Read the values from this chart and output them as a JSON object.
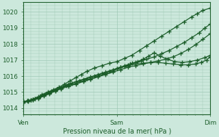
{
  "background_color": "#cce8dc",
  "grid_color": "#9dc8b4",
  "line_color": "#1a5c28",
  "marker_color": "#1a5c28",
  "title": "Pression niveau de la mer( hPa )",
  "xlabel_ticks": [
    "Ven",
    "Sam",
    "Dim"
  ],
  "xlabel_tick_pos": [
    0,
    0.5,
    1.0
  ],
  "ylim": [
    1013.6,
    1020.6
  ],
  "yticks": [
    1014,
    1015,
    1016,
    1017,
    1018,
    1019,
    1020
  ],
  "series": [
    {
      "x": [
        0.0,
        0.02,
        0.04,
        0.06,
        0.08,
        0.1,
        0.13,
        0.16,
        0.19,
        0.22,
        0.25,
        0.28,
        0.31,
        0.34,
        0.38,
        0.42,
        0.46,
        0.5,
        0.54,
        0.58,
        0.62,
        0.66,
        0.7,
        0.74,
        0.78,
        0.82,
        0.86,
        0.9,
        0.93,
        0.96,
        1.0
      ],
      "y": [
        1014.4,
        1014.45,
        1014.5,
        1014.6,
        1014.7,
        1014.85,
        1015.0,
        1015.15,
        1015.3,
        1015.5,
        1015.7,
        1015.9,
        1016.1,
        1016.3,
        1016.5,
        1016.65,
        1016.8,
        1016.9,
        1017.1,
        1017.3,
        1017.6,
        1017.9,
        1018.2,
        1018.5,
        1018.8,
        1019.1,
        1019.4,
        1019.7,
        1019.9,
        1020.1,
        1020.25
      ]
    },
    {
      "x": [
        0.0,
        0.02,
        0.04,
        0.06,
        0.09,
        0.12,
        0.15,
        0.18,
        0.21,
        0.24,
        0.28,
        0.32,
        0.36,
        0.4,
        0.44,
        0.48,
        0.52,
        0.56,
        0.6,
        0.64,
        0.68,
        0.72,
        0.76,
        0.8,
        0.84,
        0.88,
        0.92,
        0.95,
        0.98,
        1.0
      ],
      "y": [
        1014.4,
        1014.45,
        1014.5,
        1014.6,
        1014.75,
        1014.9,
        1015.05,
        1015.2,
        1015.35,
        1015.5,
        1015.65,
        1015.8,
        1015.95,
        1016.1,
        1016.25,
        1016.4,
        1016.55,
        1016.65,
        1016.75,
        1016.8,
        1016.85,
        1016.85,
        1016.8,
        1016.75,
        1016.7,
        1016.7,
        1016.75,
        1016.85,
        1017.0,
        1017.2
      ]
    },
    {
      "x": [
        0.0,
        0.025,
        0.05,
        0.08,
        0.11,
        0.14,
        0.17,
        0.2,
        0.23,
        0.26,
        0.3,
        0.34,
        0.38,
        0.42,
        0.46,
        0.5,
        0.54,
        0.56,
        0.58,
        0.61,
        0.64,
        0.67,
        0.7,
        0.73,
        0.77,
        0.81,
        0.85,
        0.89,
        0.93,
        0.97,
        1.0
      ],
      "y": [
        1014.4,
        1014.45,
        1014.55,
        1014.65,
        1014.8,
        1014.95,
        1015.1,
        1015.25,
        1015.4,
        1015.55,
        1015.7,
        1015.85,
        1016.0,
        1016.15,
        1016.3,
        1016.45,
        1016.6,
        1016.7,
        1016.8,
        1016.9,
        1017.05,
        1017.25,
        1017.45,
        1017.25,
        1017.05,
        1016.9,
        1016.85,
        1016.9,
        1017.0,
        1017.15,
        1017.3
      ]
    },
    {
      "x": [
        0.0,
        0.025,
        0.05,
        0.08,
        0.11,
        0.14,
        0.17,
        0.2,
        0.24,
        0.28,
        0.32,
        0.36,
        0.4,
        0.44,
        0.48,
        0.5,
        0.52,
        0.54,
        0.57,
        0.6,
        0.63,
        0.66,
        0.7,
        0.74,
        0.78,
        0.82,
        0.86,
        0.9,
        0.94,
        0.97,
        1.0
      ],
      "y": [
        1014.4,
        1014.45,
        1014.55,
        1014.65,
        1014.8,
        1014.95,
        1015.1,
        1015.25,
        1015.4,
        1015.55,
        1015.7,
        1015.85,
        1016.0,
        1016.15,
        1016.3,
        1016.45,
        1016.55,
        1016.65,
        1016.75,
        1016.85,
        1016.95,
        1017.05,
        1017.2,
        1017.4,
        1017.6,
        1017.85,
        1018.1,
        1018.4,
        1018.7,
        1019.0,
        1019.25
      ]
    },
    {
      "x": [
        0.0,
        0.025,
        0.05,
        0.08,
        0.11,
        0.14,
        0.17,
        0.2,
        0.24,
        0.28,
        0.32,
        0.36,
        0.4,
        0.44,
        0.48,
        0.52,
        0.56,
        0.6,
        0.64,
        0.68,
        0.72,
        0.76,
        0.8,
        0.84,
        0.88,
        0.92,
        0.96,
        1.0
      ],
      "y": [
        1014.35,
        1014.4,
        1014.5,
        1014.6,
        1014.75,
        1014.9,
        1015.05,
        1015.2,
        1015.35,
        1015.5,
        1015.65,
        1015.8,
        1015.95,
        1016.1,
        1016.25,
        1016.4,
        1016.55,
        1016.65,
        1016.75,
        1016.85,
        1016.95,
        1017.05,
        1017.2,
        1017.4,
        1017.65,
        1017.95,
        1018.3,
        1018.65
      ]
    }
  ]
}
